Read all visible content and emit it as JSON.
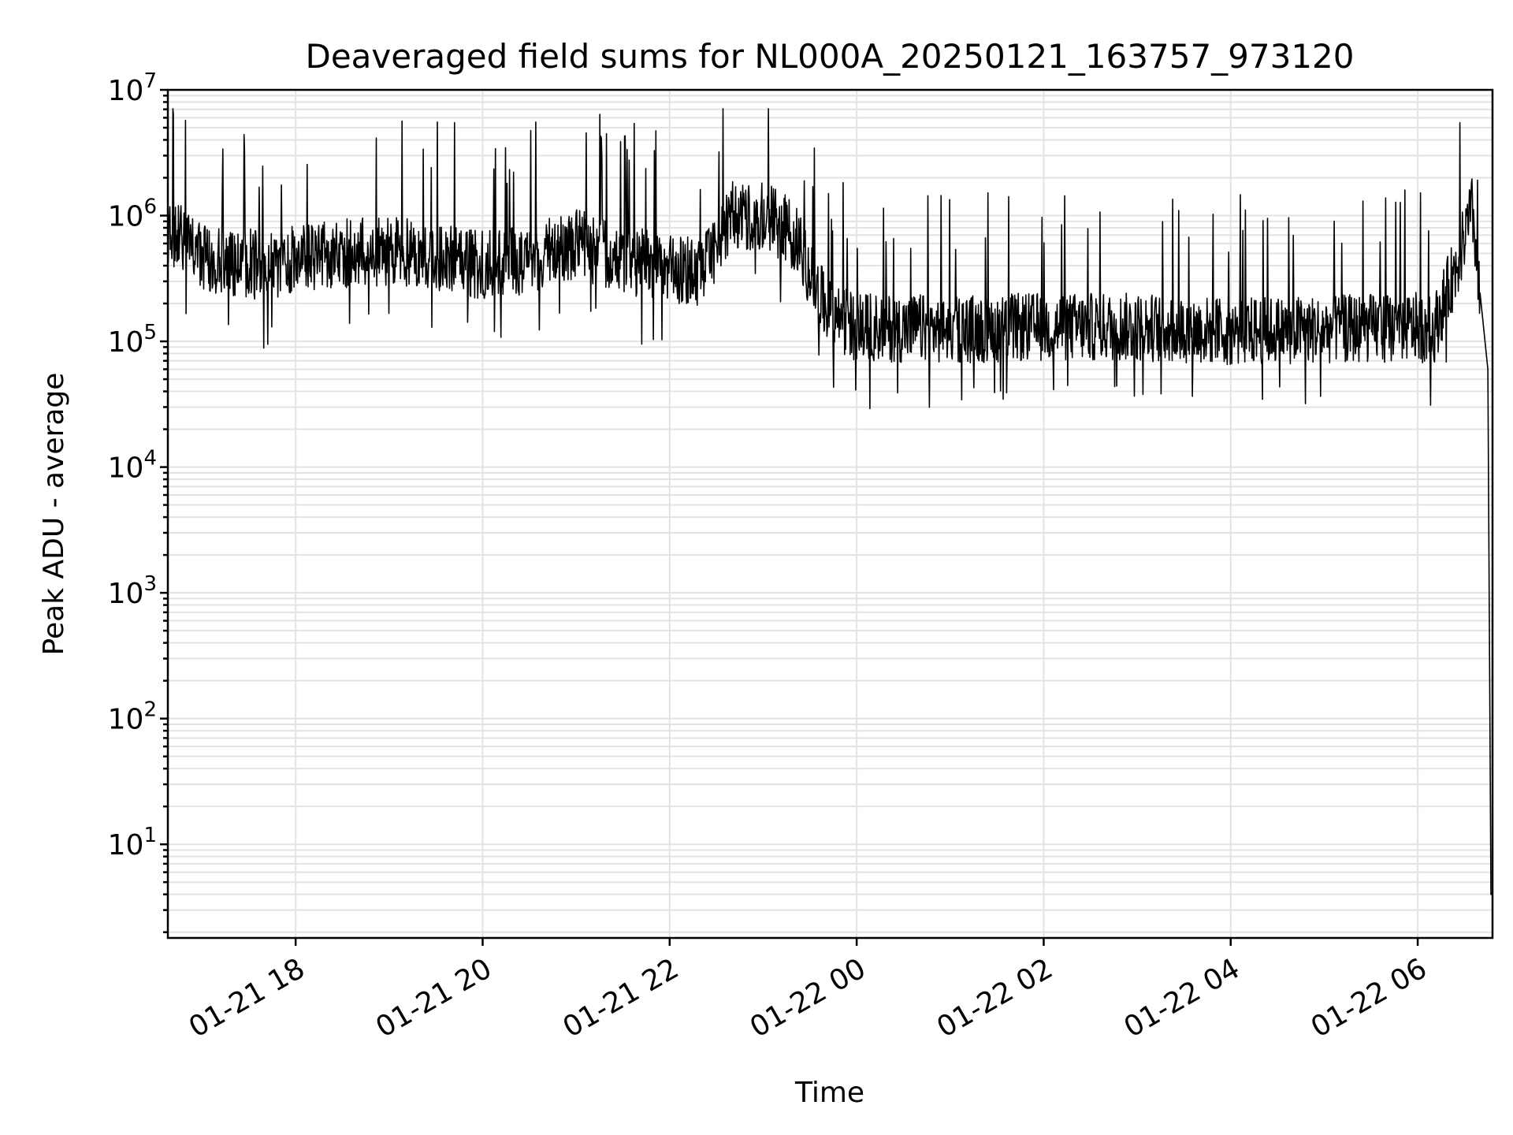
{
  "chart_data": {
    "type": "line",
    "title": "Deaveraged field sums for NL000A_20250121_163757_973120",
    "xlabel": "Time",
    "ylabel": "Peak ADU - average",
    "yscale": "log",
    "ylim": [
      1.8,
      10000000
    ],
    "xlim": [
      "2025-01-21 16:38",
      "2025-01-22 06:48"
    ],
    "x_ticks": [
      "01-21 18",
      "01-21 20",
      "01-21 22",
      "01-22 00",
      "01-22 02",
      "01-22 04",
      "01-22 06"
    ],
    "y_ticks": [
      {
        "base": "10",
        "exp": "1",
        "value": 10
      },
      {
        "base": "10",
        "exp": "2",
        "value": 100
      },
      {
        "base": "10",
        "exp": "3",
        "value": 1000
      },
      {
        "base": "10",
        "exp": "4",
        "value": 10000
      },
      {
        "base": "10",
        "exp": "5",
        "value": 100000
      },
      {
        "base": "10",
        "exp": "6",
        "value": 1000000
      },
      {
        "base": "10",
        "exp": "7",
        "value": 10000000
      }
    ],
    "grid": true,
    "line_color": "#000000",
    "series": [
      {
        "x": [
          "2025-01-21 16:38",
          "2025-01-21 17:00",
          "2025-01-21 17:20",
          "2025-01-21 17:30",
          "2025-01-21 17:40",
          "2025-01-21 18:00",
          "2025-01-21 18:30",
          "2025-01-21 19:00",
          "2025-01-21 19:30",
          "2025-01-21 20:00",
          "2025-01-21 20:30",
          "2025-01-21 21:00",
          "2025-01-21 21:30",
          "2025-01-21 22:00",
          "2025-01-21 22:20",
          "2025-01-21 22:40",
          "2025-01-21 23:00",
          "2025-01-21 23:20",
          "2025-01-21 23:40",
          "2025-01-22 00:00",
          "2025-01-22 01:00",
          "2025-01-22 02:00",
          "2025-01-22 03:00",
          "2025-01-22 04:00",
          "2025-01-22 05:00",
          "2025-01-22 06:00",
          "2025-01-22 06:10",
          "2025-01-22 06:25",
          "2025-01-22 06:35",
          "2025-01-22 06:45",
          "2025-01-22 06:47",
          "2025-01-22 06:48"
        ],
        "y": [
          800000,
          450000,
          400000,
          420000,
          380000,
          450000,
          500000,
          520000,
          480000,
          400000,
          450000,
          600000,
          450000,
          380000,
          350000,
          1000000,
          1000000,
          700000,
          180000,
          130000,
          125000,
          130000,
          130000,
          120000,
          125000,
          130000,
          120000,
          400000,
          1100000,
          60000,
          4,
          4
        ]
      }
    ]
  }
}
